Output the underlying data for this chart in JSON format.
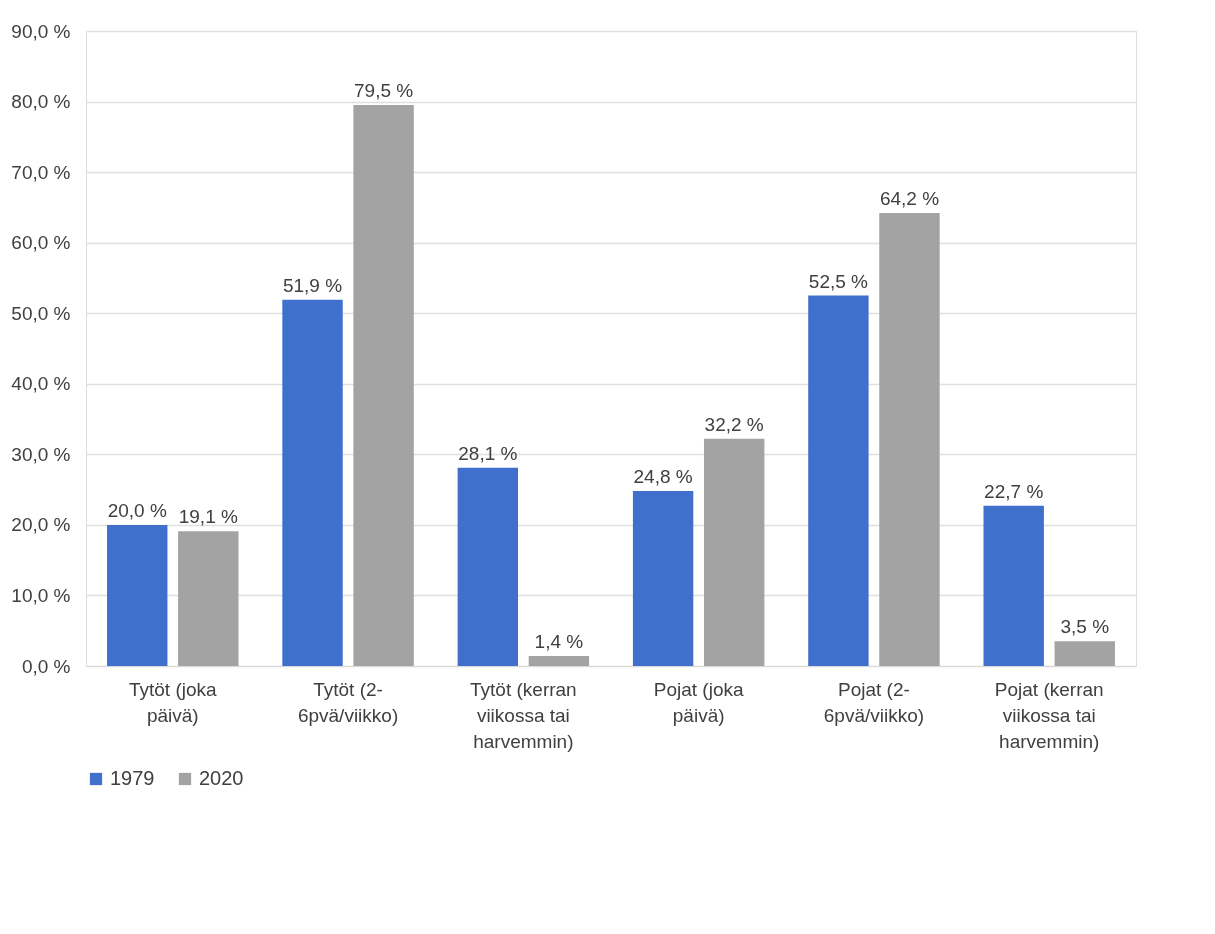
{
  "chart_data": {
    "type": "bar",
    "categories": [
      "Tytöt (joka päivä)",
      "Tytöt (2-6pvä/viikko)",
      "Tytöt (kerran viikossa tai harvemmin)",
      "Pojat (joka päivä)",
      "Pojat (2-6pvä/viikko)",
      "Pojat (kerran viikossa tai harvemmin)"
    ],
    "series": [
      {
        "name": "1979",
        "color": "#3f70cc",
        "values": [
          20.0,
          51.9,
          28.1,
          24.8,
          52.5,
          22.7
        ],
        "value_labels": [
          "20,0 %",
          "51,9 %",
          "28,1 %",
          "24,8 %",
          "52,5 %",
          "22,7 %"
        ]
      },
      {
        "name": "2020",
        "color": "#a3a3a3",
        "values": [
          19.1,
          79.5,
          1.4,
          32.2,
          64.2,
          3.5
        ],
        "value_labels": [
          "19,1 %",
          "79,5 %",
          "1,4 %",
          "32,2 %",
          "64,2 %",
          "3,5 %"
        ]
      }
    ],
    "ylim": [
      0,
      90
    ],
    "yticks": [
      {
        "value": 0,
        "label": "0,0 %"
      },
      {
        "value": 10,
        "label": "10,0 %"
      },
      {
        "value": 20,
        "label": "20,0 %"
      },
      {
        "value": 30,
        "label": "30,0 %"
      },
      {
        "value": 40,
        "label": "40,0 %"
      },
      {
        "value": 50,
        "label": "50,0 %"
      },
      {
        "value": 60,
        "label": "60,0 %"
      },
      {
        "value": 70,
        "label": "70,0 %"
      },
      {
        "value": 80,
        "label": "80,0 %"
      },
      {
        "value": 90,
        "label": "90,0 %"
      }
    ],
    "grid": "y",
    "legend": "bottom"
  }
}
